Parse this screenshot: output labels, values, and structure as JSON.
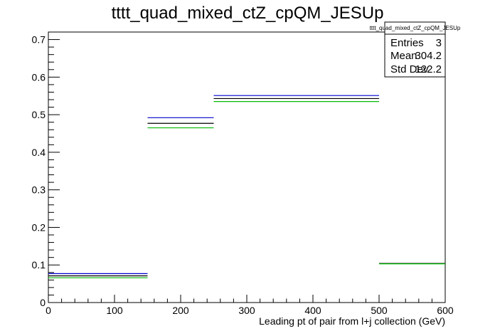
{
  "chart_data": {
    "type": "histogram",
    "title": "tttt_quad_mixed_ctZ_cpQM_JESUp",
    "xlabel": "Leading pt of pair from l+j collection (GeV)",
    "ylabel": "",
    "xlim": [
      0,
      600
    ],
    "ylim": [
      0,
      0.72
    ],
    "x_ticks": [
      0,
      100,
      200,
      300,
      400,
      500,
      600
    ],
    "y_ticks": [
      0,
      0.1,
      0.2,
      0.3,
      0.4,
      0.5,
      0.6,
      0.7
    ],
    "x_tick_labels": [
      "0",
      "100",
      "200",
      "300",
      "400",
      "500",
      "600"
    ],
    "y_tick_labels": [
      "0",
      "0.1",
      "0.2",
      "0.3",
      "0.4",
      "0.5",
      "0.6",
      "0.7"
    ],
    "bin_edges": [
      0,
      150,
      250,
      500,
      600
    ],
    "series": [
      {
        "color": "#0000cc",
        "values": [
          0.077,
          0.492,
          0.551,
          0.104
        ]
      },
      {
        "color": "#000000",
        "values": [
          0.071,
          0.477,
          0.543,
          0.104
        ]
      },
      {
        "color": "#00bb00",
        "values": [
          0.066,
          0.465,
          0.535,
          0.103
        ]
      }
    ],
    "stats_box": {
      "title": "tttt_quad_mixed_ctZ_cpQM_JESUp",
      "rows": [
        {
          "label": "Entries",
          "value": "3"
        },
        {
          "label": "Mean",
          "value": "304.2"
        },
        {
          "label": "Std Dev",
          "value": "122.2"
        }
      ]
    },
    "grid": false,
    "stats_placement": "top-right"
  }
}
